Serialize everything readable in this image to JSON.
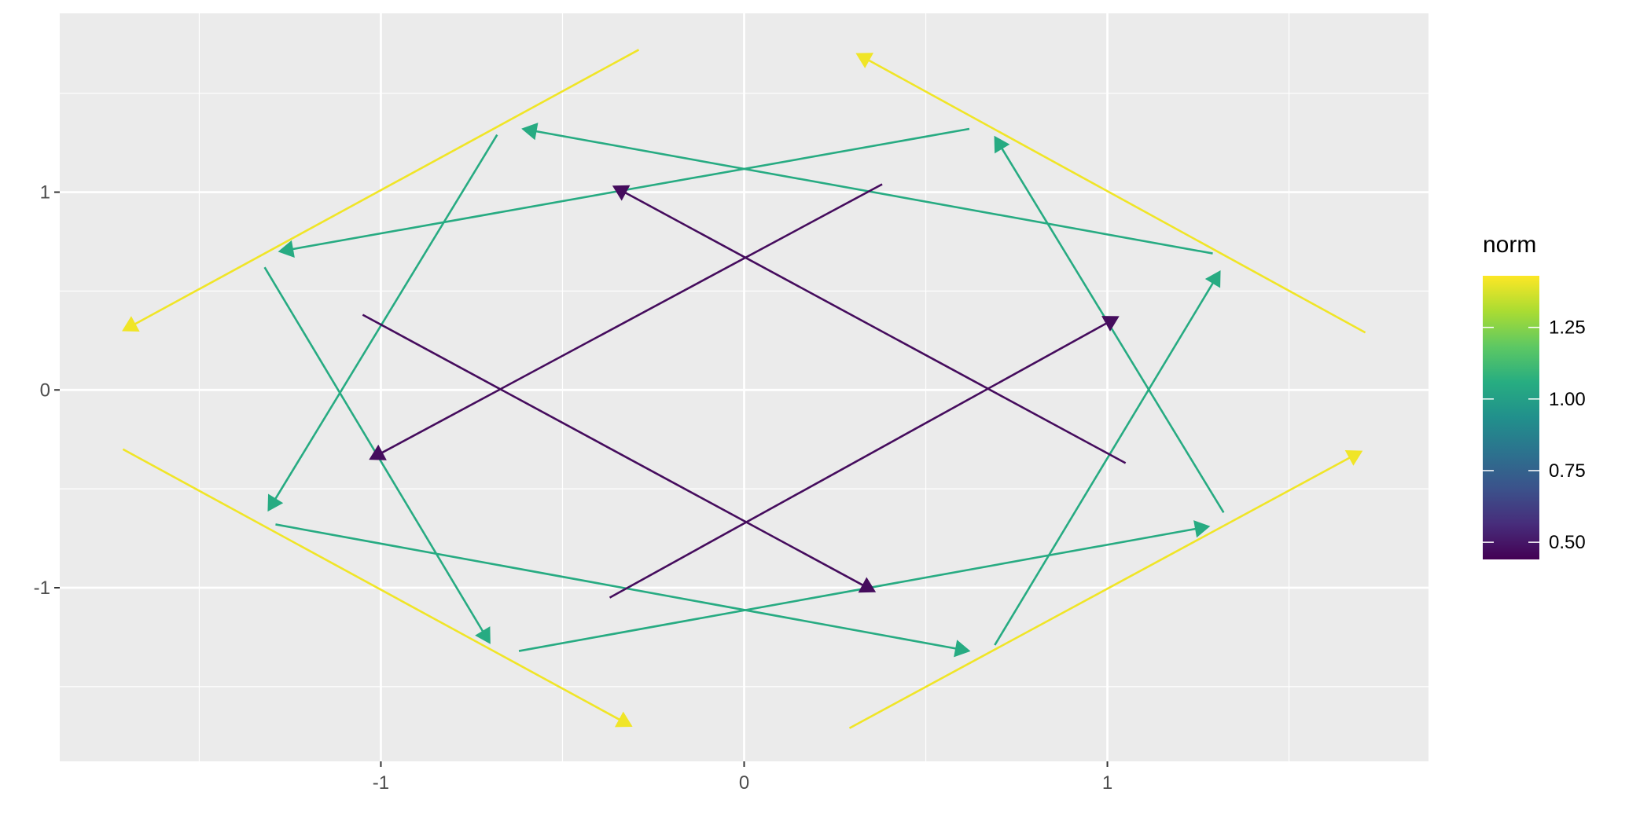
{
  "chart_data": {
    "type": "vector-field",
    "title": "",
    "xlabel": "",
    "ylabel": "",
    "xlim": [
      -1.884,
      1.884
    ],
    "ylim": [
      -1.878,
      1.904
    ],
    "x_ticks": [
      -1,
      0,
      1
    ],
    "x_tick_labels": [
      "-1",
      "0",
      "1"
    ],
    "y_ticks": [
      -1,
      0,
      1
    ],
    "y_tick_labels": [
      "-1",
      "0",
      "1"
    ],
    "grid": true,
    "panel_background": "#EBEBEB",
    "legend": {
      "title": "norm",
      "position": "right",
      "type": "colorbar",
      "palette": "viridis",
      "limits": [
        0.44,
        1.43
      ],
      "ticks": [
        0.5,
        0.75,
        1.0,
        1.25
      ],
      "tick_labels": [
        "0.50",
        "0.75",
        "1.00",
        "1.25"
      ]
    },
    "segments": [
      {
        "x": -0.29,
        "y": 1.72,
        "xend": -1.71,
        "yend": 0.3,
        "norm": 1.41
      },
      {
        "x": 1.71,
        "y": 0.29,
        "xend": 0.31,
        "yend": 1.7,
        "norm": 1.41
      },
      {
        "x": -1.71,
        "y": -0.3,
        "xend": -0.31,
        "yend": -1.7,
        "norm": 1.41
      },
      {
        "x": 0.29,
        "y": -1.71,
        "xend": 1.7,
        "yend": -0.31,
        "norm": 1.41
      },
      {
        "x": 1.29,
        "y": 0.69,
        "xend": -0.61,
        "yend": 1.32,
        "norm": 1.05
      },
      {
        "x": 0.62,
        "y": 1.32,
        "xend": -1.28,
        "yend": 0.7,
        "norm": 1.05
      },
      {
        "x": -0.68,
        "y": 1.29,
        "xend": -1.31,
        "yend": -0.61,
        "norm": 1.05
      },
      {
        "x": -1.32,
        "y": 0.62,
        "xend": -0.7,
        "yend": -1.28,
        "norm": 1.05
      },
      {
        "x": -1.29,
        "y": -0.68,
        "xend": 0.62,
        "yend": -1.32,
        "norm": 1.05
      },
      {
        "x": -0.62,
        "y": -1.32,
        "xend": 1.28,
        "yend": -0.69,
        "norm": 1.05
      },
      {
        "x": 0.69,
        "y": -1.29,
        "xend": 1.31,
        "yend": 0.6,
        "norm": 1.05
      },
      {
        "x": 1.32,
        "y": -0.62,
        "xend": 0.69,
        "yend": 1.28,
        "norm": 1.05
      },
      {
        "x": 0.38,
        "y": 1.04,
        "xend": -1.03,
        "yend": -0.35,
        "norm": 0.47
      },
      {
        "x": 1.05,
        "y": -0.37,
        "xend": -0.36,
        "yend": 1.03,
        "norm": 0.47
      },
      {
        "x": -1.05,
        "y": 0.38,
        "xend": 0.36,
        "yend": -1.02,
        "norm": 0.47
      },
      {
        "x": -0.37,
        "y": -1.05,
        "xend": 1.03,
        "yend": 0.37,
        "norm": 0.47
      }
    ]
  }
}
